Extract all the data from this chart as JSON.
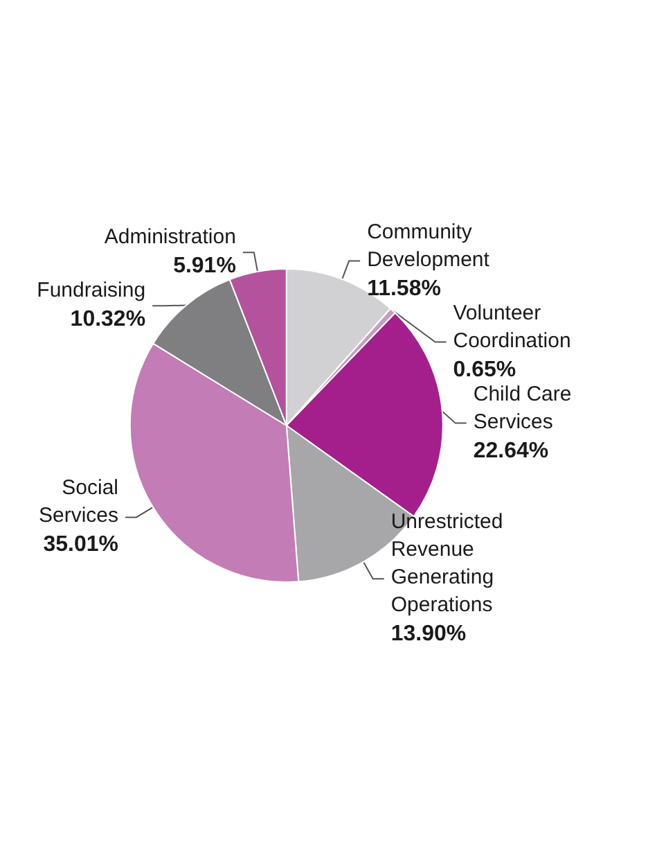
{
  "chart_data": {
    "type": "pie",
    "categories": [
      "Community Development",
      "Volunteer Coordination",
      "Child Care Services",
      "Unrestricted Revenue Generating Operations",
      "Social Services",
      "Fundraising",
      "Administration"
    ],
    "values": [
      11.58,
      0.65,
      22.64,
      13.9,
      35.01,
      10.32,
      5.91
    ],
    "value_labels": [
      "11.58%",
      "0.65%",
      "22.64%",
      "13.90%",
      "35.01%",
      "10.32%",
      "5.91%"
    ],
    "colors": [
      "#d1d1d4",
      "#c79cc4",
      "#a41f8b",
      "#a7a7aa",
      "#c37cb5",
      "#7f7f82",
      "#b4529d"
    ],
    "legend": false
  }
}
